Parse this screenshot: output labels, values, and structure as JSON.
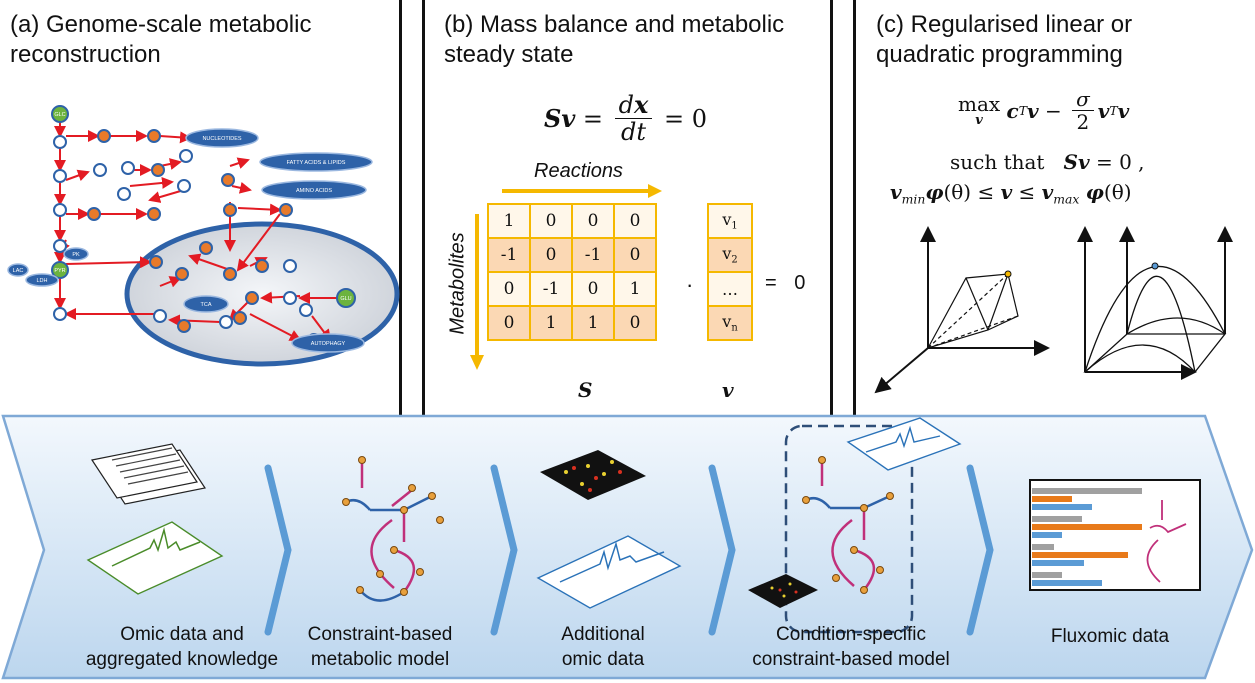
{
  "panels": {
    "a": {
      "title_line1": "(a) Genome-scale metabolic",
      "title_line2": "reconstruction"
    },
    "b": {
      "title_line1": "(b) Mass balance and metabolic",
      "title_line2": "steady state"
    },
    "c": {
      "title_line1": "(c) Regularised linear or",
      "title_line2": "quadratic programming"
    }
  },
  "network_labels": {
    "glc": "GLC",
    "pyr": "PYR",
    "pk": "PK",
    "lac": "LAC",
    "ldh": "LDH",
    "tca": "TCA",
    "glu": "GLU",
    "nucleotides": "NUCLEOTIDES",
    "fatty_acids": "FATTY ACIDS & LIPIDS",
    "amino_acids": "AMINO ACIDS",
    "autophagy": "AUTOPHAGY"
  },
  "mass_balance": {
    "reactions_label": "Reactions",
    "metabolites_label": "Metabolites",
    "matrix": [
      [
        "1",
        "0",
        "0",
        "0"
      ],
      [
        "-1",
        "0",
        "-1",
        "0"
      ],
      [
        "0",
        "-1",
        "0",
        "1"
      ],
      [
        "0",
        "1",
        "1",
        "0"
      ]
    ],
    "vector": [
      "v1",
      "v2",
      "…",
      "vn"
    ],
    "dot": "·",
    "equals_rhs": "= 0",
    "matrix_symbol": "S",
    "vector_symbol": "v"
  },
  "optimisation": {
    "line2_text": "such that"
  },
  "workflow": {
    "steps": [
      {
        "line1": "Omic data and",
        "line2": "aggregated knowledge"
      },
      {
        "line1": "Constraint-based",
        "line2": "metabolic model"
      },
      {
        "line1": "Additional",
        "line2": "omic data"
      },
      {
        "line1": "Condition-specific",
        "line2": "constraint-based model"
      },
      {
        "line1": "Fluxomic data",
        "line2": ""
      }
    ]
  },
  "colors": {
    "reaction_red": "#e31b23",
    "node_blue": "#2e62a8",
    "node_orange": "#e87a2a",
    "matrix_border": "#f5b800",
    "banner_top": "#f3f8fd",
    "banner_bottom": "#bcd6ee",
    "chevron": "#5b9bd5"
  }
}
